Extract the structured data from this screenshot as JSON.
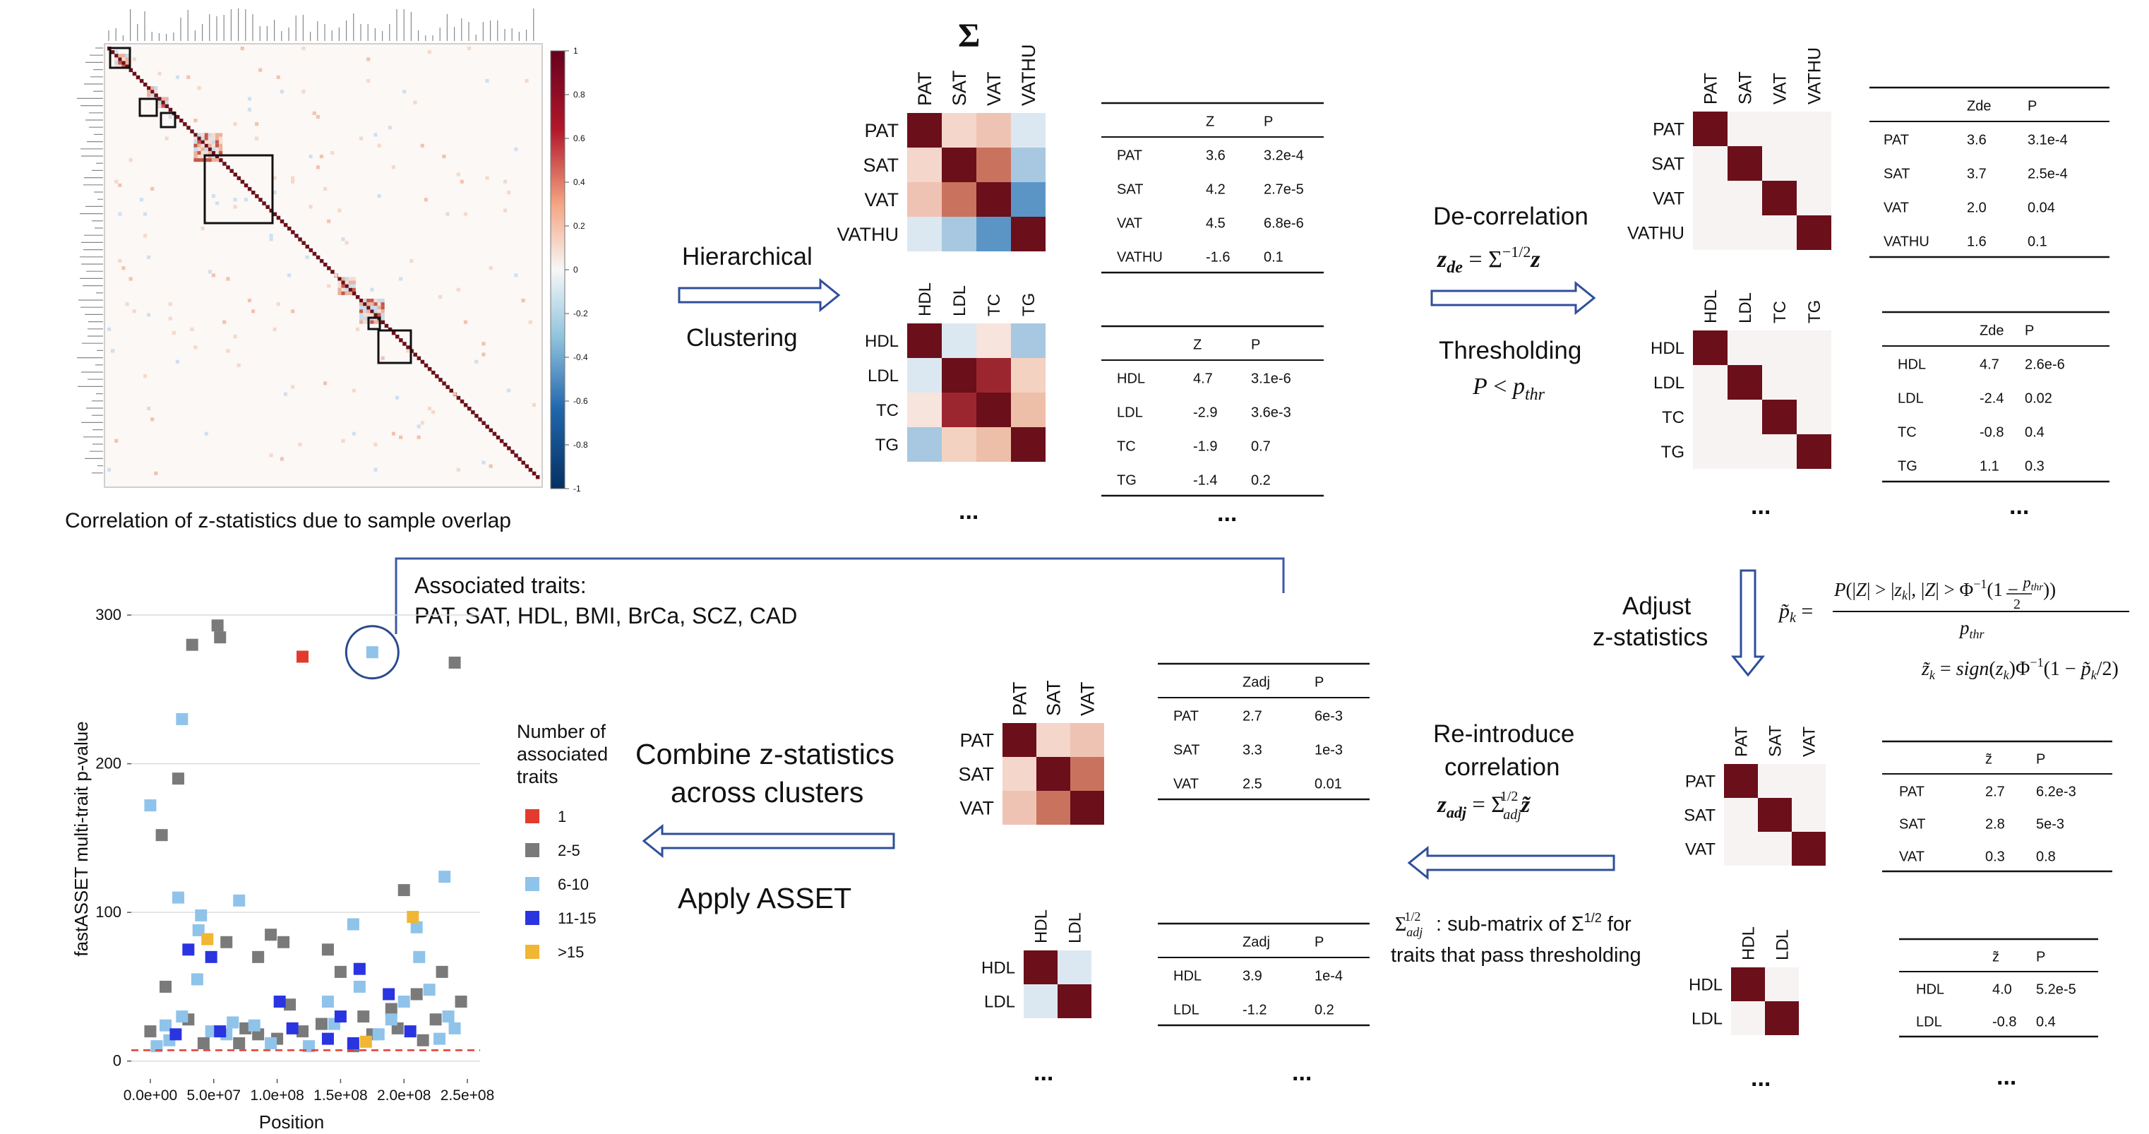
{
  "corr_panel": {
    "caption": "Correlation of z-statistics due to sample overlap",
    "colorbar_ticks": [
      "1",
      "0.8",
      "0.6",
      "0.4",
      "0.2",
      "0",
      "-0.2",
      "-0.4",
      "-0.6",
      "-0.8",
      "-1"
    ]
  },
  "sigma_symbol": "Σ",
  "hierarchical": {
    "line1": "Hierarchical",
    "line2": "Clustering"
  },
  "heatmap_top": {
    "labels": [
      "PAT",
      "SAT",
      "VAT",
      "VATHU"
    ],
    "cells": [
      [
        "#6b0f1a",
        "#f4d6cb",
        "#efc3b3",
        "#dce8f1"
      ],
      [
        "#f4d6cb",
        "#6b0f1a",
        "#c9735e",
        "#a7c8e0"
      ],
      [
        "#efc3b3",
        "#c9735e",
        "#6b0f1a",
        "#5b95c6"
      ],
      [
        "#dce8f1",
        "#a7c8e0",
        "#5b95c6",
        "#6b0f1a"
      ]
    ]
  },
  "heatmap_mid": {
    "labels": [
      "HDL",
      "LDL",
      "TC",
      "TG"
    ],
    "cells": [
      [
        "#6b0f1a",
        "#dce8f1",
        "#f7e4dc",
        "#a7c8e0"
      ],
      [
        "#dce8f1",
        "#6b0f1a",
        "#9c2630",
        "#f3d2c1"
      ],
      [
        "#f7e4dc",
        "#9c2630",
        "#6b0f1a",
        "#edbfa8"
      ],
      [
        "#a7c8e0",
        "#f3d2c1",
        "#edbfa8",
        "#6b0f1a"
      ]
    ]
  },
  "table_top": {
    "head": [
      "Z",
      "P"
    ],
    "rows": [
      [
        "PAT",
        "3.6",
        "3.2e-4"
      ],
      [
        "SAT",
        "4.2",
        "2.7e-5"
      ],
      [
        "VAT",
        "4.5",
        "6.8e-6"
      ],
      [
        "VATHU",
        "-1.6",
        "0.1"
      ]
    ]
  },
  "table_mid": {
    "head": [
      "Z",
      "P"
    ],
    "rows": [
      [
        "HDL",
        "4.7",
        "3.1e-6"
      ],
      [
        "LDL",
        "-2.9",
        "3.6e-3"
      ],
      [
        "TC",
        "-1.9",
        "0.7"
      ],
      [
        "TG",
        "-1.4",
        "0.2"
      ]
    ]
  },
  "ellipsis": "...",
  "decorrelation": {
    "title": "De-correlation",
    "formula": "z_de = Σ^{-1/2} z",
    "thresholding": "Thresholding",
    "threshold_formula": "P < p_thr"
  },
  "identity_top": {
    "labels": [
      "PAT",
      "SAT",
      "VAT",
      "VATHU"
    ]
  },
  "identity_mid": {
    "labels": [
      "HDL",
      "LDL",
      "TC",
      "TG"
    ]
  },
  "table_de_top": {
    "head": [
      "Zde",
      "P"
    ],
    "rows": [
      [
        "PAT",
        "3.6",
        "3.1e-4",
        "red"
      ],
      [
        "SAT",
        "3.7",
        "2.5e-4",
        "red"
      ],
      [
        "VAT",
        "2.0",
        "0.04",
        "red"
      ],
      [
        "VATHU",
        "1.6",
        "0.1",
        "black"
      ]
    ]
  },
  "table_de_mid": {
    "head": [
      "Zde",
      "P"
    ],
    "rows": [
      [
        "HDL",
        "4.7",
        "2.6e-6",
        "red"
      ],
      [
        "LDL",
        "-2.4",
        "0.02",
        "red"
      ],
      [
        "TC",
        "-0.8",
        "0.4",
        "black"
      ],
      [
        "TG",
        "1.1",
        "0.3",
        "black"
      ]
    ]
  },
  "adjust": {
    "line1": "Adjust",
    "line2": "z-statistics",
    "formula1": "p̃_k = P(|Z| > |z_k|, |Z| > Φ^{-1}(1 − p_thr/2)) / p_thr",
    "formula2": "z̃_k = sign(z_k) Φ^{-1}(1 − p̃_k/2)"
  },
  "identity_bottom": {
    "labels": [
      "PAT",
      "SAT",
      "VAT"
    ]
  },
  "identity_bottom2": {
    "labels": [
      "HDL",
      "LDL"
    ]
  },
  "table_tilde_1": {
    "head": [
      "z̃",
      "P"
    ],
    "rows": [
      [
        "PAT",
        "2.7",
        "6.2e-3"
      ],
      [
        "SAT",
        "2.8",
        "5e-3"
      ],
      [
        "VAT",
        "0.3",
        "0.8"
      ]
    ]
  },
  "table_tilde_2": {
    "head": [
      "z̃",
      "P"
    ],
    "rows": [
      [
        "HDL",
        "4.0",
        "5.2e-5"
      ],
      [
        "LDL",
        "-0.8",
        "0.4"
      ]
    ]
  },
  "reintroduce": {
    "line1": "Re-introduce",
    "line2": "correlation",
    "formula": "z_adj = Σ_adj^{1/2} z̃",
    "note_line1": "Σ_adj^{1/2}: sub-matrix of Σ^{1/2} for",
    "note_line2": "traits that pass thresholding"
  },
  "heatmap_adj1": {
    "labels": [
      "PAT",
      "SAT",
      "VAT"
    ],
    "cells": [
      [
        "#6b0f1a",
        "#f4d6cb",
        "#efc3b3"
      ],
      [
        "#f4d6cb",
        "#6b0f1a",
        "#c9735e"
      ],
      [
        "#efc3b3",
        "#c9735e",
        "#6b0f1a"
      ]
    ]
  },
  "heatmap_adj2": {
    "labels": [
      "HDL",
      "LDL"
    ],
    "cells": [
      [
        "#6b0f1a",
        "#dce8f1"
      ],
      [
        "#dce8f1",
        "#6b0f1a"
      ]
    ]
  },
  "table_adj1": {
    "head": [
      "Zadj",
      "P"
    ],
    "rows": [
      [
        "PAT",
        "2.7",
        "6e-3"
      ],
      [
        "SAT",
        "3.3",
        "1e-3"
      ],
      [
        "VAT",
        "2.5",
        "0.01"
      ]
    ]
  },
  "table_adj2": {
    "head": [
      "Zadj",
      "P"
    ],
    "rows": [
      [
        "HDL",
        "3.9",
        "1e-4"
      ],
      [
        "LDL",
        "-1.2",
        "0.2"
      ]
    ]
  },
  "combine": {
    "line1": "Combine z-statistics",
    "line2": "across clusters",
    "apply": "Apply ASSET"
  },
  "associated": {
    "line1": "Associated traits:",
    "line2": "PAT, SAT, HDL, BMI, BrCa, SCZ, CAD"
  },
  "colors": {
    "arrow": "#2f4f9a",
    "bracket": "#3b5aa5",
    "threshold_line": "#e23b2e",
    "highlight_circle": "#2b4a8c"
  },
  "chart_data": {
    "type": "scatter",
    "xlabel": "Position",
    "ylabel": "fastASSET multi-trait p-value",
    "x_tick_labels": [
      "0.0e+00",
      "5.0e+07",
      "1.0e+08",
      "1.5e+08",
      "2.0e+08",
      "2.5e+08"
    ],
    "x_ticks": [
      0,
      50000000,
      100000000,
      150000000,
      200000000,
      250000000
    ],
    "y_ticks": [
      0,
      100,
      200,
      300
    ],
    "xlim": [
      -15000000,
      260000000
    ],
    "ylim": [
      -12,
      310
    ],
    "threshold": 7.3,
    "legend_title": [
      "Number of",
      "associated",
      "traits"
    ],
    "legend": [
      {
        "label": "1",
        "color": "#e23b2e"
      },
      {
        "label": "2-5",
        "color": "#7a7a7a"
      },
      {
        "label": "6-10",
        "color": "#8fc3ea"
      },
      {
        "label": "11-15",
        "color": "#2a34e0"
      },
      {
        "label": ">15",
        "color": "#f0b634"
      }
    ],
    "series": [
      {
        "name": "1",
        "points": [
          [
            120000000,
            272
          ]
        ]
      },
      {
        "name": "2-5",
        "points": [
          [
            33000000,
            280
          ],
          [
            53000000,
            293
          ],
          [
            55000000,
            285
          ],
          [
            240000000,
            268
          ],
          [
            22000000,
            190
          ],
          [
            9000000,
            152
          ],
          [
            12000000,
            50
          ],
          [
            60000000,
            80
          ],
          [
            85000000,
            70
          ],
          [
            95000000,
            85
          ],
          [
            105000000,
            80
          ],
          [
            140000000,
            75
          ],
          [
            150000000,
            60
          ],
          [
            200000000,
            115
          ],
          [
            230000000,
            60
          ],
          [
            245000000,
            40
          ],
          [
            190000000,
            35
          ],
          [
            168000000,
            30
          ],
          [
            120000000,
            20
          ],
          [
            30000000,
            28
          ],
          [
            110000000,
            38
          ],
          [
            75000000,
            22
          ],
          [
            210000000,
            45
          ],
          [
            0,
            20
          ],
          [
            100000000,
            15
          ],
          [
            175000000,
            18
          ],
          [
            135000000,
            25
          ],
          [
            225000000,
            28
          ],
          [
            70000000,
            12
          ],
          [
            160000000,
            10
          ],
          [
            42000000,
            12
          ],
          [
            85000000,
            18
          ],
          [
            215000000,
            14
          ],
          [
            195000000,
            22
          ]
        ]
      },
      {
        "name": "6-10",
        "points": [
          [
            175000000,
            275
          ],
          [
            25000000,
            230
          ],
          [
            0,
            172
          ],
          [
            22000000,
            110
          ],
          [
            40000000,
            98
          ],
          [
            38000000,
            88
          ],
          [
            70000000,
            108
          ],
          [
            160000000,
            92
          ],
          [
            210000000,
            90
          ],
          [
            232000000,
            124
          ],
          [
            212000000,
            70
          ],
          [
            37000000,
            55
          ],
          [
            165000000,
            50
          ],
          [
            190000000,
            28
          ],
          [
            200000000,
            40
          ],
          [
            220000000,
            48
          ],
          [
            228000000,
            15
          ],
          [
            145000000,
            25
          ],
          [
            60000000,
            18
          ],
          [
            12000000,
            24
          ],
          [
            25000000,
            30
          ],
          [
            48000000,
            20
          ],
          [
            140000000,
            40
          ],
          [
            82000000,
            24
          ],
          [
            240000000,
            22
          ],
          [
            180000000,
            18
          ],
          [
            95000000,
            12
          ],
          [
            125000000,
            10
          ],
          [
            5000000,
            10
          ],
          [
            65000000,
            26
          ],
          [
            235000000,
            30
          ],
          [
            15000000,
            14
          ]
        ]
      },
      {
        "name": "11-15",
        "points": [
          [
            30000000,
            75
          ],
          [
            48000000,
            70
          ],
          [
            102000000,
            40
          ],
          [
            165000000,
            62
          ],
          [
            150000000,
            30
          ],
          [
            188000000,
            45
          ],
          [
            55000000,
            20
          ],
          [
            20000000,
            18
          ],
          [
            140000000,
            15
          ],
          [
            205000000,
            20
          ],
          [
            112000000,
            22
          ],
          [
            160000000,
            12
          ]
        ]
      },
      {
        "name": ">15",
        "points": [
          [
            45000000,
            82
          ],
          [
            207000000,
            97
          ],
          [
            170000000,
            13
          ]
        ]
      }
    ],
    "highlight": {
      "x": 175000000,
      "y": 275
    }
  }
}
